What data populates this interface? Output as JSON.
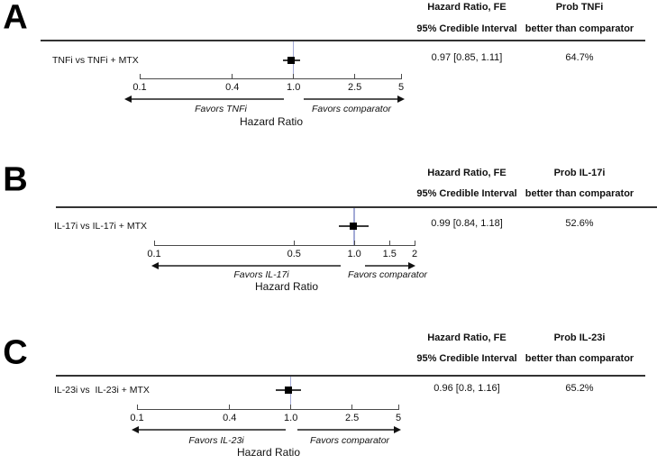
{
  "figure": {
    "panels": [
      {
        "letter": "A",
        "table": {
          "col1_header_line1": "Hazard Ratio, FE",
          "col1_header_line2": "95% Credible Interval",
          "col2_header_line1": "Prob TNFi",
          "col2_header_line2": "better than comparator",
          "row_label": "TNFi vs TNFi + MTX",
          "estimate": "0.97 [0.85, 1.11]",
          "probability": "64.7%"
        },
        "favors_left": "Favors TNFi",
        "favors_right": "Favors comparator",
        "axis_title": "Hazard Ratio"
      },
      {
        "letter": "B",
        "table": {
          "col1_header_line1": "Hazard Ratio, FE",
          "col1_header_line2": "95% Credible Interval",
          "col2_header_line1": "Prob IL-17i",
          "col2_header_line2": "better than comparator",
          "row_label": "IL-17i vs IL-17i + MTX",
          "estimate": "0.99 [0.84, 1.18]",
          "probability": "52.6%"
        },
        "favors_left": "Favors IL-17i",
        "favors_right": "Favors comparator",
        "axis_title": "Hazard Ratio"
      },
      {
        "letter": "C",
        "table": {
          "col1_header_line1": "Hazard Ratio, FE",
          "col1_header_line2": "95% Credible Interval",
          "col2_header_line1": "Prob IL-23i",
          "col2_header_line2": "better than comparator",
          "row_label": "IL-23i vs  IL-23i + MTX",
          "estimate": "0.96 [0.8, 1.16]",
          "probability": "65.2%"
        },
        "favors_left": "Favors IL-23i",
        "favors_right": "Favors comparator",
        "axis_title": "Hazard Ratio"
      }
    ]
  },
  "chart_data": [
    {
      "type": "scatter",
      "subtype": "forest-plot",
      "panel": "A",
      "comparison": "TNFi vs TNFi + MTX",
      "model": "FE",
      "hr": 0.97,
      "ci95": [
        0.85,
        1.11
      ],
      "prob_better_pct": 64.7,
      "prob_better_label": "Prob TNFi better than comparator",
      "axis": {
        "scale": "log",
        "min": 0.1,
        "max": 5,
        "ticks": [
          0.1,
          0.4,
          1.0,
          2.5,
          5
        ],
        "tick_labels": [
          "0.1",
          "0.4",
          "1.0",
          "2.5",
          "5"
        ],
        "reference_line": 1.0,
        "xlabel": "Hazard Ratio"
      },
      "annotations": {
        "favors_left": "Favors TNFi",
        "favors_right": "Favors comparator"
      }
    },
    {
      "type": "scatter",
      "subtype": "forest-plot",
      "panel": "B",
      "comparison": "IL-17i vs IL-17i + MTX",
      "model": "FE",
      "hr": 0.99,
      "ci95": [
        0.84,
        1.18
      ],
      "prob_better_pct": 52.6,
      "prob_better_label": "Prob IL-17i better than comparator",
      "axis": {
        "scale": "log",
        "min": 0.1,
        "max": 2,
        "ticks": [
          0.1,
          0.5,
          1.0,
          1.5,
          2
        ],
        "tick_labels": [
          "0.1",
          "0.5",
          "1.0",
          "1.5",
          "2"
        ],
        "reference_line": 1.0,
        "xlabel": "Hazard Ratio"
      },
      "annotations": {
        "favors_left": "Favors IL-17i",
        "favors_right": "Favors comparator"
      }
    },
    {
      "type": "scatter",
      "subtype": "forest-plot",
      "panel": "C",
      "comparison": "IL-23i vs IL-23i + MTX",
      "model": "FE",
      "hr": 0.96,
      "ci95": [
        0.8,
        1.16
      ],
      "prob_better_pct": 65.2,
      "prob_better_label": "Prob IL-23i better than comparator",
      "axis": {
        "scale": "log",
        "min": 0.1,
        "max": 5,
        "ticks": [
          0.1,
          0.4,
          1.0,
          2.5,
          5
        ],
        "tick_labels": [
          "0.1",
          "0.4",
          "1.0",
          "2.5",
          "5"
        ],
        "reference_line": 1.0,
        "xlabel": "Hazard Ratio"
      },
      "annotations": {
        "favors_left": "Favors IL-23i",
        "favors_right": "Favors comparator"
      }
    }
  ],
  "colors": {
    "marker": "#000000",
    "ci_whisker": "#3a3a3a",
    "reference_line": "#a3aad6",
    "axis_line": "#4a4a4a",
    "header_rule": "#333333",
    "arrow_line": "#555555",
    "arrow_head": "#111111",
    "text": "#111111"
  }
}
